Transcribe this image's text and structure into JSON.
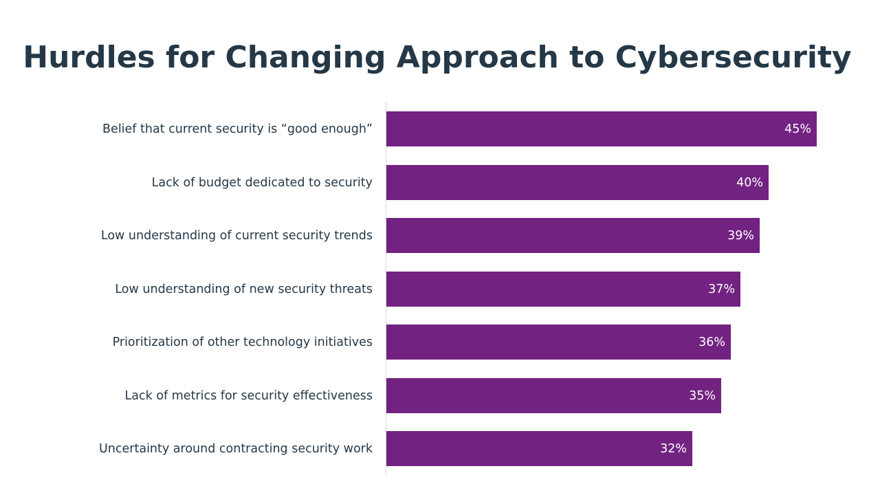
{
  "chart_data": {
    "type": "bar",
    "orientation": "horizontal",
    "title": "Hurdles for Changing Approach to Cybersecurity",
    "categories": [
      "Belief that current security is “good enough”",
      "Lack of budget dedicated to security",
      "Low understanding of current security trends",
      "Low understanding of new security threats",
      "Prioritization of other technology initiatives",
      "Lack of metrics for security effectiveness",
      "Uncertainty around contracting security work"
    ],
    "values": [
      45,
      40,
      39,
      37,
      36,
      35,
      32
    ],
    "value_labels": [
      "45%",
      "40%",
      "39%",
      "37%",
      "36%",
      "35%",
      "32%"
    ],
    "xlabel": "",
    "ylabel": "",
    "xlim": [
      0,
      45
    ],
    "grid": false,
    "legend": "none",
    "bar_color": "#722281",
    "title_color": "#243847",
    "label_color": "#243847",
    "value_label_color": "#ffffff"
  }
}
